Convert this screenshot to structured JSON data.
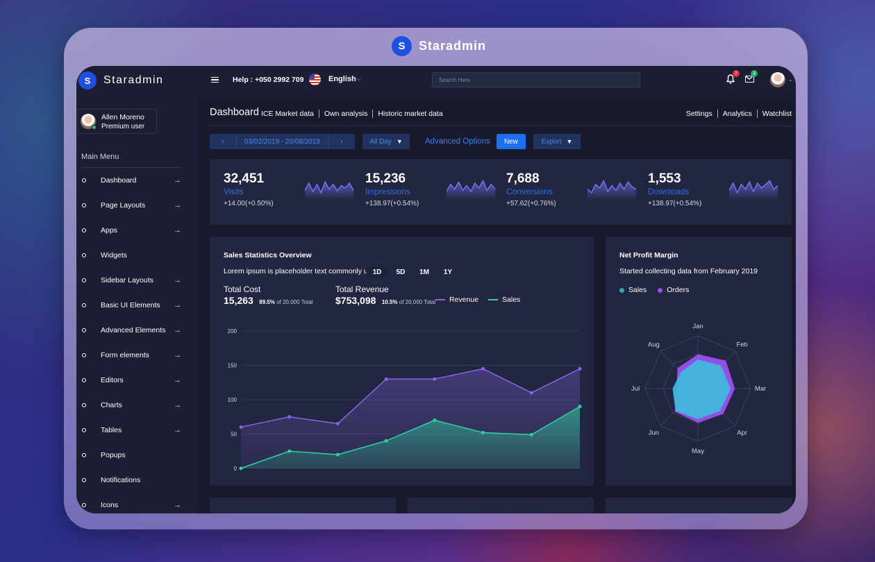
{
  "frame": {
    "brand_letter": "S",
    "brand_name": "Staradmin"
  },
  "sidebar": {
    "brand_letter": "S",
    "brand_name": "Staradmin",
    "user": {
      "name": "Allen Moreno",
      "role": "Premium user"
    },
    "menu_title": "Main Menu",
    "items": [
      {
        "label": "Dashboard",
        "arrow": true
      },
      {
        "label": "Page Layouts",
        "arrow": true
      },
      {
        "label": "Apps",
        "arrow": true
      },
      {
        "label": "Widgets",
        "arrow": false
      },
      {
        "label": "Sidebar Layouts",
        "arrow": true
      },
      {
        "label": "Basic UI Elements",
        "arrow": true
      },
      {
        "label": "Advanced Elements",
        "arrow": true
      },
      {
        "label": "Form elements",
        "arrow": true
      },
      {
        "label": "Editors",
        "arrow": true
      },
      {
        "label": "Charts",
        "arrow": true
      },
      {
        "label": "Tables",
        "arrow": true
      },
      {
        "label": "Popups",
        "arrow": false
      },
      {
        "label": "Notifications",
        "arrow": false
      },
      {
        "label": "Icons",
        "arrow": true
      }
    ]
  },
  "topbar": {
    "help": "Help : +050 2992 709",
    "language": "English",
    "search_placeholder": "Search Here",
    "notifications_count": "7",
    "messages_count": "3"
  },
  "header": {
    "title": "Dashboard",
    "sub_links": [
      "ICE Market data",
      "Own analysis",
      "Historic market data"
    ],
    "right_links": [
      "Settings",
      "Analytics",
      "Watchlist"
    ]
  },
  "toolbar": {
    "date_range": "03/02/2019 - 20/08/2019",
    "period": "All Day",
    "advanced": "Advanced Options",
    "new": "New",
    "export": "Export"
  },
  "stats": [
    {
      "value": "32,451",
      "label": "Visits",
      "delta": "+14.00(+0.50%)"
    },
    {
      "value": "15,236",
      "label": "Impressions",
      "delta": "+138.97(+0.54%)"
    },
    {
      "value": "7,688",
      "label": "Conversions",
      "delta": "+57.62(+0.76%)"
    },
    {
      "value": "1,553",
      "label": "Downloads",
      "delta": "+138.97(+0.54%)"
    }
  ],
  "sales": {
    "title": "Sales Statistics Overview",
    "subtitle": "Lorem ipsum is placeholder text commonly used",
    "ranges": [
      "1D",
      "5D",
      "1M",
      "1Y"
    ],
    "total_cost_label": "Total Cost",
    "total_cost_value": "15,263",
    "total_cost_pct": "89.5%",
    "total_cost_note": "of 20,000 Total",
    "total_revenue_label": "Total Revenue",
    "total_revenue_value": "$753,098",
    "total_revenue_pct": "10.5%",
    "total_revenue_note": "of 20,000 Total",
    "legend_revenue": "Revenue",
    "legend_sales": "Sales"
  },
  "profit": {
    "title": "Net Profit Margin",
    "subtitle": "Started collecting data from February 2019",
    "legend_sales": "Sales",
    "legend_orders": "Orders"
  },
  "colors": {
    "accent": "#1f6ff0",
    "revenue": "#8a63e6",
    "sales": "#2ed3a0",
    "orders": "#9b4ff0",
    "radar_sales": "#3fb6dd"
  },
  "chart_data": [
    {
      "type": "area",
      "title": "Sales Statistics Overview",
      "categories": [
        "",
        "",
        "",
        "",
        "",
        "",
        "",
        ""
      ],
      "ylim": [
        0,
        200
      ],
      "yticks": [
        0,
        50,
        100,
        150,
        200
      ],
      "grid": true,
      "legend": "top-right",
      "series": [
        {
          "name": "Revenue",
          "values": [
            60,
            75,
            65,
            130,
            130,
            145,
            110,
            145
          ]
        },
        {
          "name": "Sales",
          "values": [
            0,
            25,
            20,
            40,
            70,
            52,
            49,
            90
          ]
        }
      ]
    },
    {
      "type": "radar",
      "title": "Net Profit Margin",
      "categories": [
        "Jan",
        "Feb",
        "Mar",
        "Apr",
        "May",
        "Jun",
        "Jul",
        "Aug"
      ],
      "rmax": 100,
      "legend": "top-left",
      "series": [
        {
          "name": "Orders",
          "values": [
            65,
            75,
            70,
            68,
            65,
            62,
            40,
            55
          ]
        },
        {
          "name": "Sales",
          "values": [
            55,
            62,
            62,
            60,
            58,
            60,
            48,
            45
          ]
        }
      ]
    }
  ],
  "sparklines": [
    [
      10,
      22,
      8,
      20,
      6,
      24,
      12,
      20,
      9,
      18,
      14,
      22,
      10
    ],
    [
      8,
      20,
      12,
      24,
      10,
      18,
      8,
      22,
      14,
      26,
      10,
      20,
      12
    ],
    [
      12,
      6,
      20,
      14,
      26,
      8,
      18,
      10,
      22,
      12,
      24,
      16,
      12
    ],
    [
      10,
      22,
      6,
      20,
      12,
      24,
      8,
      22,
      14,
      20,
      26,
      12,
      18
    ]
  ]
}
